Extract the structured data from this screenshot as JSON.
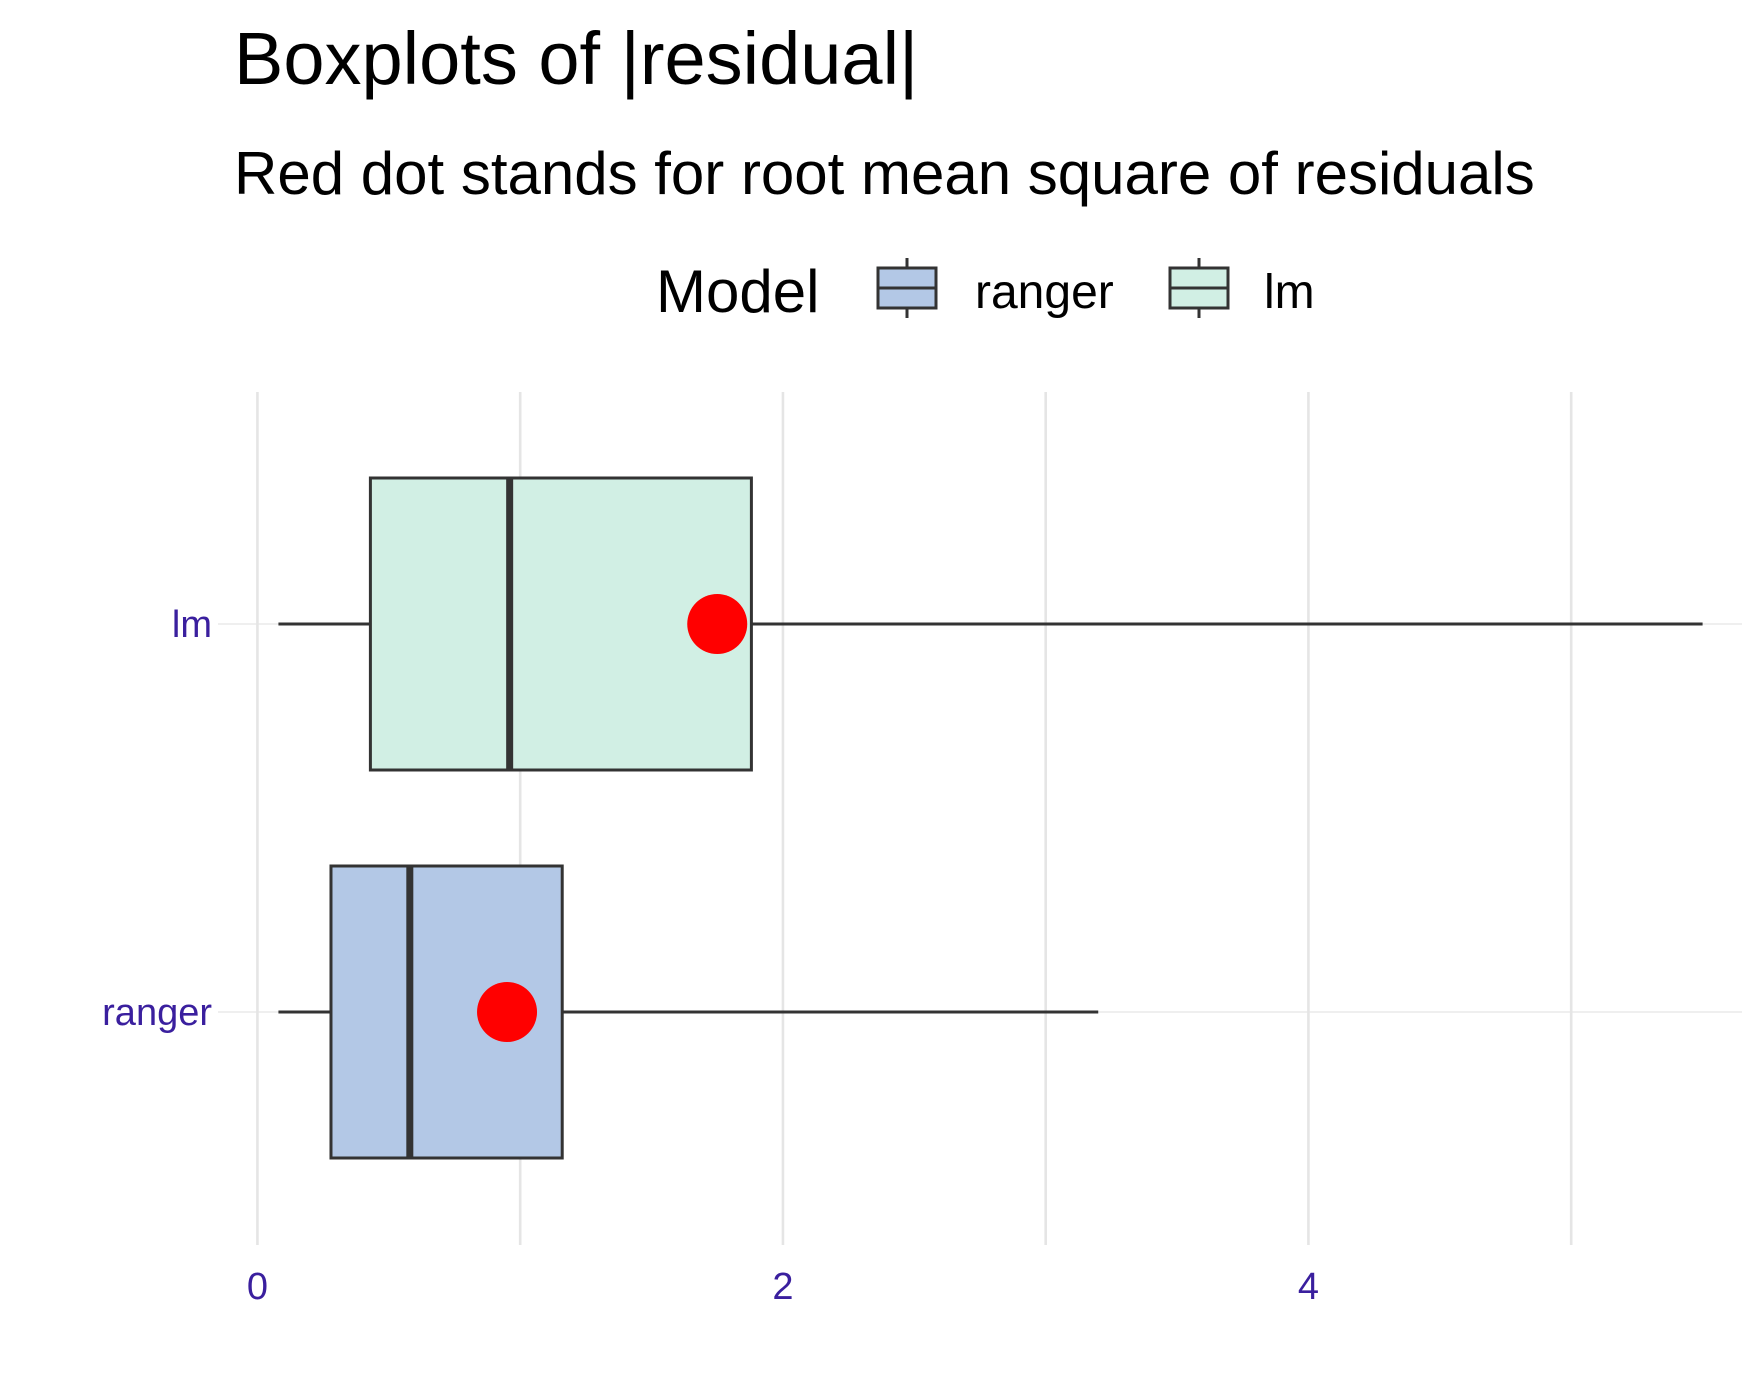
{
  "chart_data": {
    "type": "boxplot",
    "title": "Boxplots of |residual|",
    "subtitle": "Red dot stands for root mean square of residuals",
    "legend": {
      "title": "Model",
      "position": "top",
      "entries": [
        "ranger",
        "lm"
      ]
    },
    "xlim": [
      -0.15,
      5.65
    ],
    "x_ticks": [
      0,
      2,
      4
    ],
    "x_gridlines_minor": [
      1,
      3,
      5
    ],
    "grid": true,
    "categories": [
      "ranger",
      "lm"
    ],
    "series": [
      {
        "name": "ranger",
        "whisker_low": 0.08,
        "q1": 0.28,
        "median": 0.58,
        "q3": 1.16,
        "whisker_high": 3.2,
        "rmse": 0.95
      },
      {
        "name": "lm",
        "whisker_low": 0.08,
        "q1": 0.43,
        "median": 0.96,
        "q3": 1.88,
        "whisker_high": 5.5,
        "rmse": 1.75
      }
    ]
  },
  "colors": {
    "ranger": "#b3c8e6",
    "lm": "#d1efe4",
    "outline": "#333333",
    "rmse_dot": "#ff0000",
    "tick_label": "#3a1f9e",
    "grid": "#e5e5e5"
  }
}
